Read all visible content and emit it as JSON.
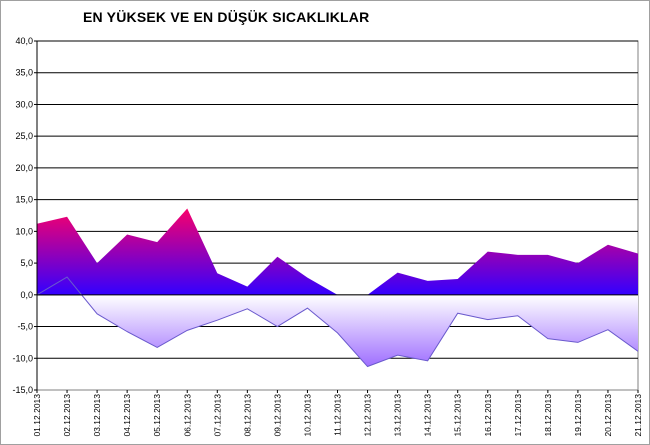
{
  "chart_data": {
    "type": "area",
    "title": "EN YÜKSEK VE EN DÜŞÜK SICAKLIKLAR",
    "xlabel": "",
    "ylabel": "",
    "ylim": [
      -15,
      40
    ],
    "yticks": [
      "40,0",
      "35,0",
      "30,0",
      "25,0",
      "20,0",
      "15,0",
      "10,0",
      "5,0",
      "0,0",
      "-5,0",
      "-10,0",
      "-15,0"
    ],
    "grid": true,
    "categories": [
      "01.12.2013",
      "02.12.2013",
      "03.12.2013",
      "04.12.2013",
      "05.12.2013",
      "06.12.2013",
      "07.12.2013",
      "08.12.2013",
      "09.12.2013",
      "10.12.2013",
      "11.12.2013",
      "12.12.2013",
      "13.12.2013",
      "14.12.2013",
      "15.12.2013",
      "16.12.2013",
      "17.12.2013",
      "18.12.2013",
      "19.12.2013",
      "20.12.2013",
      "21.12.2013"
    ],
    "series": [
      {
        "values": [
          11.2,
          12.3,
          5.0,
          9.5,
          8.3,
          13.6,
          3.4,
          1.3,
          6.0,
          2.7,
          0.0,
          0.0,
          3.5,
          2.2,
          2.5,
          6.8,
          6.3,
          6.3,
          5.0,
          7.9,
          6.5
        ]
      },
      {
        "values": [
          0.0,
          2.8,
          -3.0,
          -5.8,
          -8.3,
          -5.6,
          -4.0,
          -2.2,
          -5.0,
          -2.1,
          -6.0,
          -11.3,
          -9.5,
          -10.4,
          -2.9,
          -3.9,
          -3.3,
          -6.9,
          -7.5,
          -5.5,
          -8.9
        ]
      }
    ],
    "colors": {
      "high_top": "#ff0066",
      "high_bottom": "#3300ff",
      "low_top": "#ffffff",
      "low_bottom": "#9966ff",
      "grid": "#000000",
      "line": "#000000"
    }
  }
}
